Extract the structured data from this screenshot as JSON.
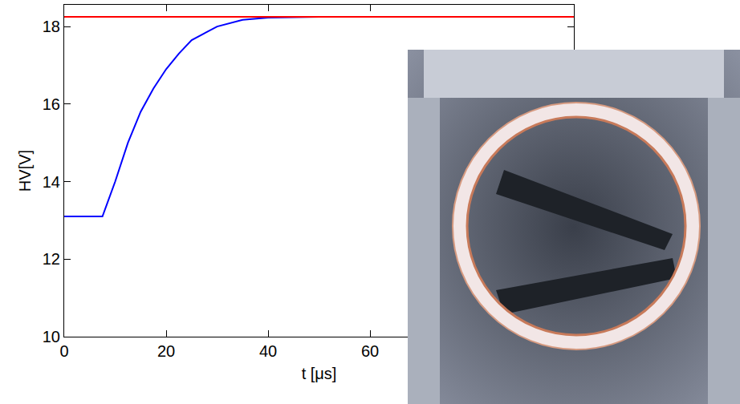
{
  "chart_data": {
    "type": "line",
    "x_label": "t [μs]",
    "y_label": "HV[V]",
    "xlim": [
      0,
      100
    ],
    "ylim": [
      10,
      18.56
    ],
    "xticks": [
      0,
      20,
      40,
      60
    ],
    "yticks": [
      10,
      12,
      14,
      16,
      18
    ],
    "grid": false,
    "series": [
      {
        "color": "#0000ff",
        "x": [
          0,
          7.5,
          10,
          12.5,
          15,
          17.5,
          20,
          22.5,
          25,
          30,
          35,
          40,
          50,
          60,
          80,
          100
        ],
        "values": [
          13.1,
          13.1,
          14.0,
          15.0,
          15.8,
          16.4,
          16.9,
          17.3,
          17.65,
          18.0,
          18.17,
          18.23,
          18.25,
          18.25,
          18.25,
          18.25
        ]
      },
      {
        "color": "#ff0000",
        "x": [
          0,
          100
        ],
        "values": [
          18.25,
          18.25
        ]
      }
    ]
  }
}
